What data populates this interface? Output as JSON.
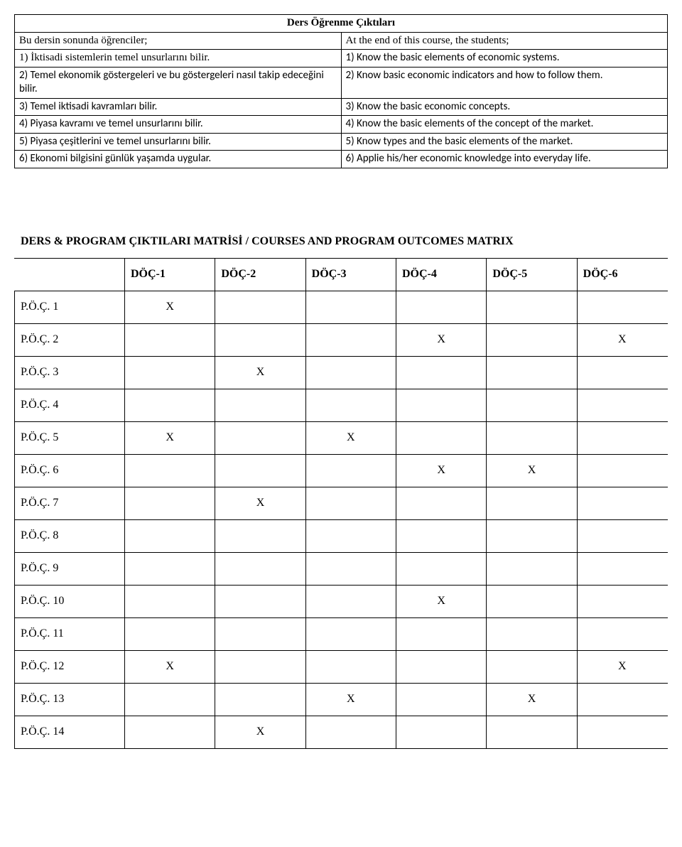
{
  "outcomes": {
    "title": "Ders Öğrenme Çıktıları",
    "leftIntro": "Bu dersin sonunda öğrenciler;",
    "rightIntro": "At the end of this course, the students;",
    "rows": [
      {
        "left": "1) İktisadi sistemlerin temel unsurlarını bilir.",
        "right": "1) Know the basic elements of economic systems."
      },
      {
        "left": "2) Temel ekonomik göstergeleri ve bu göstergeleri nasıl takip edeceğini bilir.",
        "right": "2) Know basic economic indicators and how to follow them."
      },
      {
        "left": "3) Temel iktisadi kavramları bilir.",
        "right": "3) Know the basic economic concepts."
      },
      {
        "left": "4) Piyasa kavramı ve temel unsurlarını bilir.",
        "right": "4) Know the basic elements of the concept of the market."
      },
      {
        "left": "5) Piyasa çeşitlerini ve temel unsurlarını bilir.",
        "right": "5) Know types and the basic elements of the market."
      },
      {
        "left": "6) Ekonomi bilgisini günlük yaşamda uygular.",
        "right": "6) Applie his/her economic knowledge into everyday life."
      }
    ]
  },
  "matrix": {
    "title": "DERS & PROGRAM ÇIKTILARI MATRİSİ / COURSES AND PROGRAM OUTCOMES MATRIX",
    "columns": [
      "DÖÇ-1",
      "DÖÇ-2",
      "DÖÇ-3",
      "DÖÇ-4",
      "DÖÇ-5",
      "DÖÇ-6"
    ],
    "rows": [
      {
        "label": "P.Ö.Ç. 1",
        "marks": [
          "X",
          "",
          "",
          "",
          "",
          ""
        ]
      },
      {
        "label": "P.Ö.Ç. 2",
        "marks": [
          "",
          "",
          "",
          "X",
          "",
          "X"
        ]
      },
      {
        "label": "P.Ö.Ç. 3",
        "marks": [
          "",
          "X",
          "",
          "",
          "",
          ""
        ]
      },
      {
        "label": "P.Ö.Ç. 4",
        "marks": [
          "",
          "",
          "",
          "",
          "",
          ""
        ]
      },
      {
        "label": "P.Ö.Ç. 5",
        "marks": [
          "X",
          "",
          "X",
          "",
          "",
          ""
        ]
      },
      {
        "label": "P.Ö.Ç. 6",
        "marks": [
          "",
          "",
          "",
          "X",
          "X",
          ""
        ]
      },
      {
        "label": "P.Ö.Ç. 7",
        "marks": [
          "",
          "X",
          "",
          "",
          "",
          ""
        ]
      },
      {
        "label": "P.Ö.Ç. 8",
        "marks": [
          "",
          "",
          "",
          "",
          "",
          ""
        ]
      },
      {
        "label": "P.Ö.Ç. 9",
        "marks": [
          "",
          "",
          "",
          "",
          "",
          ""
        ]
      },
      {
        "label": "P.Ö.Ç. 10",
        "marks": [
          "",
          "",
          "",
          "X",
          "",
          ""
        ]
      },
      {
        "label": "P.Ö.Ç. 11",
        "marks": [
          "",
          "",
          "",
          "",
          "",
          ""
        ]
      },
      {
        "label": "P.Ö.Ç. 12",
        "marks": [
          "X",
          "",
          "",
          "",
          "",
          "X"
        ]
      },
      {
        "label": "P.Ö.Ç. 13",
        "marks": [
          "",
          "",
          "X",
          "",
          "X",
          ""
        ]
      },
      {
        "label": "P.Ö.Ç. 14",
        "marks": [
          "",
          "X",
          "",
          "",
          "",
          ""
        ]
      }
    ]
  }
}
